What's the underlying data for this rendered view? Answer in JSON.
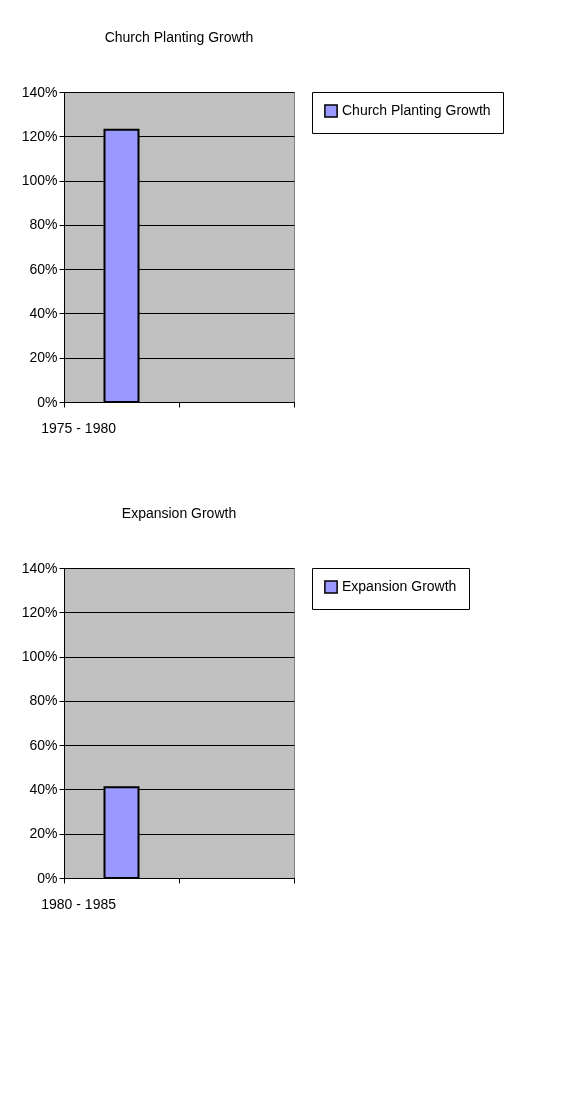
{
  "chart_data": [
    {
      "type": "bar",
      "title": "Church Planting Growth",
      "categories": [
        "1975 - 1980",
        null
      ],
      "series": [
        {
          "name": "Church Planting Growth",
          "color": "#9999ff",
          "values": [
            123,
            null
          ]
        }
      ],
      "ylim": [
        0,
        140
      ],
      "yticks": [
        {
          "value": 0,
          "label": "0%"
        },
        {
          "value": 20,
          "label": "20%"
        },
        {
          "value": 40,
          "label": "40%"
        },
        {
          "value": 60,
          "label": "60%"
        },
        {
          "value": 80,
          "label": "80%"
        },
        {
          "value": 100,
          "label": "100%"
        },
        {
          "value": 120,
          "label": "120%"
        },
        {
          "value": 140,
          "label": "140%"
        }
      ],
      "grid": "y",
      "legend": "right"
    },
    {
      "type": "bar",
      "title": "Expansion Growth",
      "categories": [
        "1980 - 1985",
        null
      ],
      "series": [
        {
          "name": "Expansion Growth",
          "color": "#9999ff",
          "values": [
            41,
            null
          ]
        }
      ],
      "ylim": [
        0,
        140
      ],
      "yticks": [
        {
          "value": 0,
          "label": "0%"
        },
        {
          "value": 20,
          "label": "20%"
        },
        {
          "value": 40,
          "label": "40%"
        },
        {
          "value": 60,
          "label": "60%"
        },
        {
          "value": 80,
          "label": "80%"
        },
        {
          "value": 100,
          "label": "100%"
        },
        {
          "value": 120,
          "label": "120%"
        },
        {
          "value": 140,
          "label": "140%"
        }
      ],
      "grid": "y",
      "legend": "right"
    }
  ]
}
